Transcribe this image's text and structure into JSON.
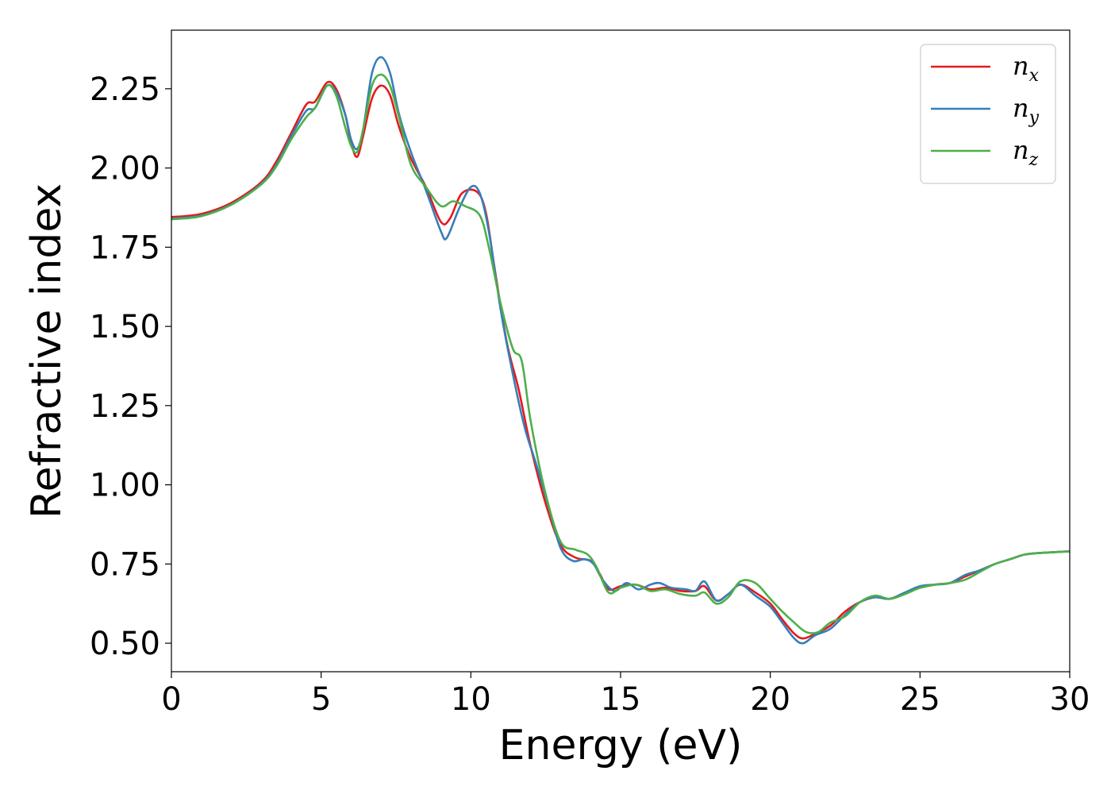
{
  "chart_data": {
    "type": "line",
    "xlabel": "Energy (eV)",
    "ylabel": "Refractive index",
    "xlim": [
      0,
      30
    ],
    "ylim": [
      0.41,
      2.435
    ],
    "xticks": [
      0,
      5,
      10,
      15,
      20,
      25,
      30
    ],
    "xtick_labels": [
      "0",
      "5",
      "10",
      "15",
      "20",
      "25",
      "30"
    ],
    "yticks": [
      0.5,
      0.75,
      1.0,
      1.25,
      1.5,
      1.75,
      2.0,
      2.25
    ],
    "ytick_labels": [
      "0.50",
      "0.75",
      "1.00",
      "1.25",
      "1.50",
      "1.75",
      "2.00",
      "2.25"
    ],
    "grid": false,
    "legend_position": "top-right",
    "colors": {
      "n_x": "#e41a1c",
      "n_y": "#377eb8",
      "n_z": "#4daf4a"
    },
    "series": [
      {
        "key": "n_x",
        "name": "n",
        "subscript": "x",
        "color": "#e41a1c",
        "points": [
          [
            0,
            1.845
          ],
          [
            1,
            1.855
          ],
          [
            2,
            1.89
          ],
          [
            3,
            1.955
          ],
          [
            3.5,
            2.02
          ],
          [
            4,
            2.11
          ],
          [
            4.5,
            2.2
          ],
          [
            4.8,
            2.21
          ],
          [
            5.2,
            2.27
          ],
          [
            5.5,
            2.25
          ],
          [
            5.8,
            2.17
          ],
          [
            6.0,
            2.08
          ],
          [
            6.2,
            2.035
          ],
          [
            6.4,
            2.1
          ],
          [
            6.7,
            2.22
          ],
          [
            7.0,
            2.26
          ],
          [
            7.3,
            2.23
          ],
          [
            7.6,
            2.13
          ],
          [
            8.0,
            2.03
          ],
          [
            8.5,
            1.94
          ],
          [
            9.0,
            1.83
          ],
          [
            9.3,
            1.84
          ],
          [
            9.7,
            1.92
          ],
          [
            10.2,
            1.925
          ],
          [
            10.5,
            1.86
          ],
          [
            10.8,
            1.68
          ],
          [
            11.2,
            1.45
          ],
          [
            11.6,
            1.3
          ],
          [
            12.0,
            1.12
          ],
          [
            12.5,
            0.94
          ],
          [
            13.0,
            0.81
          ],
          [
            13.5,
            0.77
          ],
          [
            14.0,
            0.76
          ],
          [
            14.3,
            0.72
          ],
          [
            14.6,
            0.67
          ],
          [
            15.0,
            0.68
          ],
          [
            15.5,
            0.685
          ],
          [
            16.0,
            0.67
          ],
          [
            16.5,
            0.675
          ],
          [
            17.0,
            0.665
          ],
          [
            17.5,
            0.665
          ],
          [
            17.8,
            0.68
          ],
          [
            18.2,
            0.635
          ],
          [
            18.6,
            0.655
          ],
          [
            19.0,
            0.685
          ],
          [
            19.5,
            0.66
          ],
          [
            20.0,
            0.625
          ],
          [
            20.4,
            0.575
          ],
          [
            20.8,
            0.53
          ],
          [
            21.1,
            0.515
          ],
          [
            21.5,
            0.53
          ],
          [
            22.0,
            0.555
          ],
          [
            22.5,
            0.6
          ],
          [
            23.0,
            0.63
          ],
          [
            23.5,
            0.645
          ],
          [
            24.0,
            0.64
          ],
          [
            24.5,
            0.66
          ],
          [
            25.0,
            0.675
          ],
          [
            25.5,
            0.685
          ],
          [
            26.0,
            0.69
          ],
          [
            26.5,
            0.71
          ],
          [
            27.0,
            0.73
          ],
          [
            27.5,
            0.75
          ],
          [
            28.0,
            0.765
          ],
          [
            28.5,
            0.78
          ],
          [
            29.0,
            0.785
          ],
          [
            30.0,
            0.79
          ]
        ]
      },
      {
        "key": "n_y",
        "name": "n",
        "subscript": "y",
        "color": "#377eb8",
        "points": [
          [
            0,
            1.84
          ],
          [
            1,
            1.85
          ],
          [
            2,
            1.885
          ],
          [
            3,
            1.95
          ],
          [
            3.5,
            2.01
          ],
          [
            4,
            2.1
          ],
          [
            4.5,
            2.18
          ],
          [
            4.8,
            2.19
          ],
          [
            5.2,
            2.26
          ],
          [
            5.5,
            2.24
          ],
          [
            5.8,
            2.17
          ],
          [
            6.0,
            2.09
          ],
          [
            6.2,
            2.06
          ],
          [
            6.4,
            2.12
          ],
          [
            6.7,
            2.3
          ],
          [
            7.0,
            2.35
          ],
          [
            7.3,
            2.3
          ],
          [
            7.6,
            2.17
          ],
          [
            8.0,
            2.05
          ],
          [
            8.5,
            1.93
          ],
          [
            9.0,
            1.8
          ],
          [
            9.2,
            1.78
          ],
          [
            9.6,
            1.87
          ],
          [
            10.0,
            1.94
          ],
          [
            10.3,
            1.92
          ],
          [
            10.6,
            1.8
          ],
          [
            11.0,
            1.55
          ],
          [
            11.4,
            1.35
          ],
          [
            11.8,
            1.18
          ],
          [
            12.2,
            1.06
          ],
          [
            12.6,
            0.93
          ],
          [
            13.0,
            0.8
          ],
          [
            13.4,
            0.76
          ],
          [
            13.8,
            0.765
          ],
          [
            14.1,
            0.75
          ],
          [
            14.4,
            0.7
          ],
          [
            14.8,
            0.665
          ],
          [
            15.2,
            0.69
          ],
          [
            15.6,
            0.67
          ],
          [
            16.0,
            0.685
          ],
          [
            16.3,
            0.69
          ],
          [
            16.7,
            0.675
          ],
          [
            17.2,
            0.67
          ],
          [
            17.5,
            0.665
          ],
          [
            17.8,
            0.695
          ],
          [
            18.2,
            0.635
          ],
          [
            18.6,
            0.655
          ],
          [
            19.0,
            0.685
          ],
          [
            19.5,
            0.65
          ],
          [
            20.0,
            0.615
          ],
          [
            20.4,
            0.565
          ],
          [
            20.8,
            0.515
          ],
          [
            21.1,
            0.5
          ],
          [
            21.5,
            0.525
          ],
          [
            22.0,
            0.545
          ],
          [
            22.5,
            0.59
          ],
          [
            23.0,
            0.63
          ],
          [
            23.5,
            0.645
          ],
          [
            24.0,
            0.64
          ],
          [
            24.5,
            0.66
          ],
          [
            25.0,
            0.68
          ],
          [
            25.5,
            0.685
          ],
          [
            26.0,
            0.69
          ],
          [
            26.5,
            0.715
          ],
          [
            27.0,
            0.73
          ],
          [
            27.5,
            0.75
          ],
          [
            28.0,
            0.765
          ],
          [
            28.5,
            0.78
          ],
          [
            29.0,
            0.785
          ],
          [
            30.0,
            0.79
          ]
        ]
      },
      {
        "key": "n_z",
        "name": "n",
        "subscript": "z",
        "color": "#4daf4a",
        "points": [
          [
            0,
            1.838
          ],
          [
            1,
            1.848
          ],
          [
            2,
            1.884
          ],
          [
            3,
            1.948
          ],
          [
            3.5,
            2.005
          ],
          [
            4,
            2.09
          ],
          [
            4.5,
            2.16
          ],
          [
            4.8,
            2.19
          ],
          [
            5.2,
            2.26
          ],
          [
            5.5,
            2.23
          ],
          [
            5.8,
            2.13
          ],
          [
            6.0,
            2.07
          ],
          [
            6.2,
            2.05
          ],
          [
            6.4,
            2.12
          ],
          [
            6.7,
            2.26
          ],
          [
            7.0,
            2.295
          ],
          [
            7.3,
            2.26
          ],
          [
            7.6,
            2.16
          ],
          [
            8.0,
            2.01
          ],
          [
            8.5,
            1.94
          ],
          [
            9.0,
            1.88
          ],
          [
            9.4,
            1.895
          ],
          [
            9.8,
            1.88
          ],
          [
            10.3,
            1.85
          ],
          [
            10.6,
            1.75
          ],
          [
            11.0,
            1.57
          ],
          [
            11.4,
            1.43
          ],
          [
            11.7,
            1.39
          ],
          [
            12.0,
            1.2
          ],
          [
            12.5,
            0.97
          ],
          [
            13.0,
            0.82
          ],
          [
            13.5,
            0.795
          ],
          [
            13.9,
            0.78
          ],
          [
            14.2,
            0.74
          ],
          [
            14.6,
            0.66
          ],
          [
            15.0,
            0.675
          ],
          [
            15.5,
            0.685
          ],
          [
            16.0,
            0.665
          ],
          [
            16.5,
            0.67
          ],
          [
            17.0,
            0.655
          ],
          [
            17.5,
            0.65
          ],
          [
            17.8,
            0.66
          ],
          [
            18.2,
            0.625
          ],
          [
            18.6,
            0.645
          ],
          [
            19.0,
            0.695
          ],
          [
            19.5,
            0.69
          ],
          [
            20.0,
            0.64
          ],
          [
            20.4,
            0.6
          ],
          [
            20.8,
            0.565
          ],
          [
            21.2,
            0.535
          ],
          [
            21.6,
            0.535
          ],
          [
            22.0,
            0.565
          ],
          [
            22.5,
            0.585
          ],
          [
            23.0,
            0.63
          ],
          [
            23.5,
            0.65
          ],
          [
            24.0,
            0.64
          ],
          [
            24.5,
            0.655
          ],
          [
            25.0,
            0.675
          ],
          [
            25.5,
            0.685
          ],
          [
            26.0,
            0.69
          ],
          [
            26.5,
            0.7
          ],
          [
            27.0,
            0.725
          ],
          [
            27.5,
            0.75
          ],
          [
            28.0,
            0.765
          ],
          [
            28.5,
            0.78
          ],
          [
            29.0,
            0.785
          ],
          [
            30.0,
            0.79
          ]
        ]
      }
    ]
  }
}
